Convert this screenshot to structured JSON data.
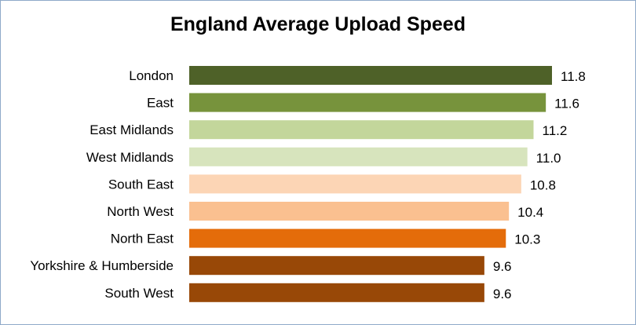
{
  "chart_data": {
    "type": "bar",
    "orientation": "horizontal",
    "title": "England Average Upload Speed",
    "xlabel": "",
    "ylabel": "",
    "grid": false,
    "legend": "none",
    "xlim": [
      0,
      11.8
    ],
    "categories": [
      "London",
      "East",
      "East Midlands",
      "West Midlands",
      "South East",
      "North West",
      "North East",
      "Yorkshire & Humberside",
      "South West"
    ],
    "values": [
      11.8,
      11.6,
      11.2,
      11.0,
      10.8,
      10.4,
      10.3,
      9.6,
      9.6
    ],
    "value_labels": [
      "11.8",
      "11.6",
      "11.2",
      "11.0",
      "10.8",
      "10.4",
      "10.3",
      "9.6",
      "9.6"
    ],
    "colors": [
      "#4e6128",
      "#77933c",
      "#c3d69b",
      "#d7e4bd",
      "#fcd5b5",
      "#fac090",
      "#e46c0a",
      "#984807",
      "#984807"
    ]
  }
}
